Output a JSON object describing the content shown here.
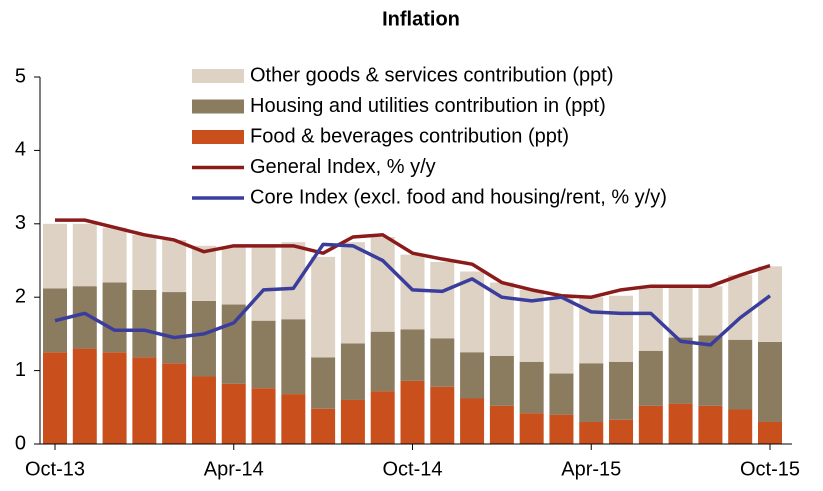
{
  "chart_data": {
    "type": "stacked_bar_line",
    "title": "Inflation",
    "categories": [
      "Oct-13",
      null,
      null,
      null,
      null,
      null,
      "Apr-14",
      null,
      null,
      null,
      null,
      null,
      "Oct-14",
      null,
      null,
      null,
      null,
      null,
      "Apr-15",
      null,
      null,
      null,
      null,
      null,
      "Oct-15"
    ],
    "series": [
      {
        "name": "Food & beverages contribution (ppt)",
        "kind": "bar",
        "color": "#c9501c",
        "values": [
          1.25,
          1.3,
          1.25,
          1.18,
          1.1,
          0.92,
          0.82,
          0.76,
          0.68,
          0.48,
          0.6,
          0.72,
          0.86,
          0.78,
          0.62,
          0.52,
          0.42,
          0.4,
          0.3,
          0.33,
          0.52,
          0.55,
          0.52,
          0.47,
          0.3
        ]
      },
      {
        "name": "Housing and utilities contribution in (ppt)",
        "kind": "bar",
        "color": "#8b7b5f",
        "values": [
          0.87,
          0.85,
          0.95,
          0.92,
          0.97,
          1.03,
          1.08,
          0.92,
          1.02,
          0.7,
          0.77,
          0.81,
          0.7,
          0.66,
          0.63,
          0.68,
          0.7,
          0.56,
          0.8,
          0.79,
          0.75,
          0.9,
          0.96,
          0.95,
          1.09
        ]
      },
      {
        "name": "Other goods & services contribution (ppt)",
        "kind": "bar",
        "color": "#ddd2c3",
        "values": [
          0.88,
          0.85,
          0.75,
          0.75,
          0.71,
          0.75,
          0.78,
          1.02,
          1.05,
          1.37,
          1.38,
          1.29,
          1.02,
          1.04,
          1.1,
          1.0,
          0.98,
          1.04,
          0.9,
          0.9,
          0.88,
          0.7,
          0.67,
          0.88,
          1.03
        ]
      },
      {
        "name": "General Index, % y/y",
        "kind": "line",
        "color": "#8b1a1a",
        "values": [
          3.05,
          3.05,
          2.95,
          2.85,
          2.78,
          2.62,
          2.7,
          2.7,
          2.7,
          2.6,
          2.82,
          2.85,
          2.6,
          2.52,
          2.45,
          2.2,
          2.1,
          2.02,
          2.0,
          2.1,
          2.15,
          2.15,
          2.15,
          2.3,
          2.43
        ]
      },
      {
        "name": "Core Index (excl. food and housing/rent, % y/y)",
        "kind": "line",
        "color": "#3b3d9c",
        "values": [
          1.68,
          1.78,
          1.55,
          1.55,
          1.45,
          1.5,
          1.65,
          2.1,
          2.12,
          2.72,
          2.7,
          2.5,
          2.1,
          2.08,
          2.25,
          2.0,
          1.95,
          2.0,
          1.8,
          1.78,
          1.78,
          1.4,
          1.35,
          1.72,
          2.02
        ]
      }
    ],
    "ylim": [
      0,
      5
    ],
    "yticks": [
      0,
      1,
      2,
      3,
      4,
      5
    ]
  }
}
